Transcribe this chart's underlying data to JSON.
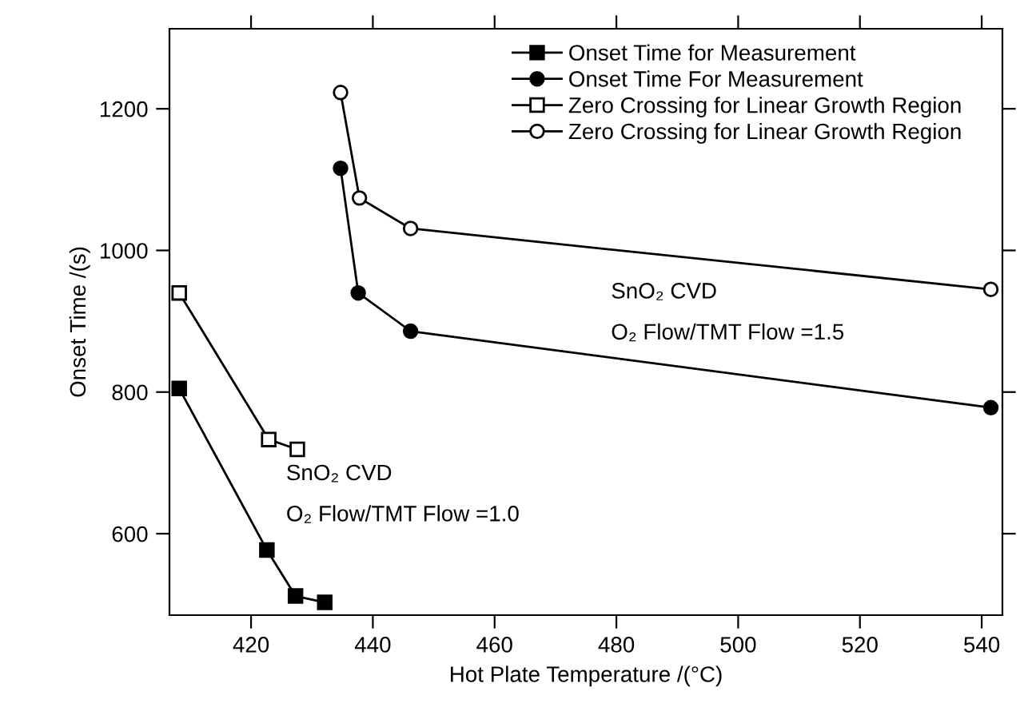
{
  "chart_data": {
    "type": "line",
    "xlabel": "Hot Plate Temperature /(°C)",
    "ylabel": "Onset Time /(s)",
    "series": [
      {
        "name": "Onset Time for Measurement",
        "color": "#000000",
        "marker": "square",
        "x": [
          408.2,
          422.6,
          427.3,
          432.1
        ],
        "values": [
          805,
          577,
          512,
          503
        ]
      },
      {
        "name": "Onset Time For Measurement",
        "color": "#000000",
        "marker": "circle",
        "x": [
          434.7,
          437.6,
          446.2,
          541.5
        ],
        "values": [
          1116,
          940,
          886,
          778
        ]
      },
      {
        "name": "Zero Crossing for Linear Growth Region",
        "color": "#000000",
        "marker": "square",
        "x": [
          408.2,
          422.9,
          427.6
        ],
        "values": [
          940,
          733,
          719
        ]
      },
      {
        "name": "Zero Crossing for Linear Growth Region",
        "color": "#000000",
        "marker": "circle",
        "x": [
          434.7,
          437.8,
          446.2,
          541.5
        ],
        "values": [
          1223,
          1074,
          1031,
          945
        ]
      }
    ],
    "annotations": [
      "SnO₂ CVD",
      "O₂ Flow/TMT Flow =1.0",
      "SnO₂ CVD",
      "O₂ Flow/TMT Flow =1.5"
    ],
    "xlim": [
      406.6,
      543.4
    ],
    "ylim": [
      485,
      1313
    ],
    "xticks": [
      420,
      440,
      460,
      480,
      500,
      520,
      540
    ],
    "yticks": [
      600,
      800,
      1000,
      1200
    ],
    "grid": false,
    "legend": "top right",
    "line_style": "solid"
  }
}
